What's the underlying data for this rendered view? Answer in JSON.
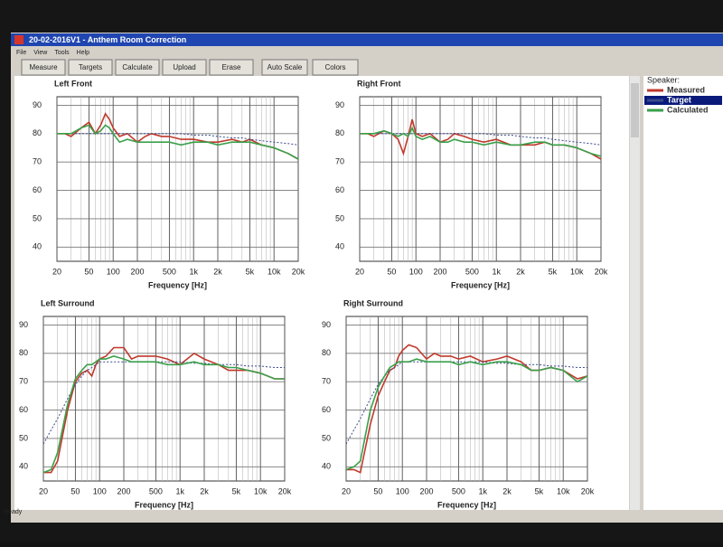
{
  "window": {
    "title": "20-02-2016V1 - Anthem Room Correction",
    "menu": [
      "File",
      "View",
      "Tools",
      "Help"
    ],
    "toolbar": [
      "Measure",
      "Targets",
      "Calculate",
      "Upload",
      "Erase",
      "Auto Scale",
      "Colors"
    ],
    "legend": {
      "title": "Speaker:",
      "items": [
        {
          "name": "Measured",
          "color": "#c0392b"
        },
        {
          "name": "Target",
          "color": "#3a4a8a",
          "selected": true
        },
        {
          "name": "Calculated",
          "color": "#3aa04a"
        }
      ]
    },
    "status": "Ready"
  },
  "chart_data": [
    {
      "type": "line",
      "title": "Left Front",
      "x_label": "Frequency [Hz]",
      "log_x": true,
      "grid": true,
      "x": [
        20,
        25,
        30,
        40,
        50,
        60,
        70,
        80,
        90,
        100,
        120,
        150,
        200,
        250,
        300,
        400,
        500,
        700,
        1000,
        1500,
        2000,
        3000,
        4000,
        5000,
        7000,
        10000,
        15000,
        20000
      ],
      "xlim": [
        20,
        20000
      ],
      "xticks": [
        20,
        50,
        100,
        200,
        500,
        {
          "value": 1000,
          "label": "1k"
        },
        {
          "value": 2000,
          "label": "2k"
        },
        {
          "value": 5000,
          "label": "5k"
        },
        {
          "value": 10000,
          "label": "10k"
        },
        {
          "value": 20000,
          "label": "20k"
        }
      ],
      "ylim": [
        35,
        93
      ],
      "yticks": [
        40,
        50,
        60,
        70,
        80,
        90
      ],
      "series": [
        {
          "color": "#c0392b",
          "values": [
            80,
            80,
            79,
            82,
            84,
            80,
            83,
            87,
            85,
            82,
            79,
            80,
            77,
            79,
            80,
            79,
            79,
            78,
            78,
            77,
            77,
            78,
            77,
            78,
            76,
            75,
            73,
            71
          ]
        },
        {
          "color": "#3a4a8a",
          "style": "dotted",
          "values": [
            80,
            80,
            80,
            80,
            80,
            80,
            80,
            80,
            80,
            80,
            80,
            80,
            80,
            80,
            80,
            80,
            80,
            80,
            79.5,
            79.5,
            79,
            78.5,
            78.5,
            78,
            77.5,
            77,
            76.5,
            76
          ]
        },
        {
          "color": "#3aa04a",
          "values": [
            80,
            80,
            80,
            82,
            83,
            80,
            81,
            83,
            82,
            80,
            77,
            78,
            77,
            77,
            77,
            77,
            77,
            76,
            77,
            77,
            76,
            77,
            77,
            77,
            76,
            75,
            73,
            71
          ]
        }
      ]
    },
    {
      "type": "line",
      "title": "Right Front",
      "x_label": "Frequency [Hz]",
      "log_x": true,
      "grid": true,
      "x": [
        20,
        25,
        30,
        40,
        50,
        60,
        70,
        80,
        90,
        100,
        120,
        150,
        200,
        250,
        300,
        400,
        500,
        700,
        1000,
        1500,
        2000,
        3000,
        4000,
        5000,
        7000,
        10000,
        15000,
        20000
      ],
      "xlim": [
        20,
        20000
      ],
      "xticks": [
        20,
        50,
        100,
        200,
        500,
        {
          "value": 1000,
          "label": "1k"
        },
        {
          "value": 2000,
          "label": "2k"
        },
        {
          "value": 5000,
          "label": "5k"
        },
        {
          "value": 10000,
          "label": "10k"
        },
        {
          "value": 20000,
          "label": "20k"
        }
      ],
      "ylim": [
        35,
        93
      ],
      "yticks": [
        40,
        50,
        60,
        70,
        80,
        90
      ],
      "series": [
        {
          "color": "#c0392b",
          "values": [
            80,
            80,
            79,
            81,
            80,
            78,
            73,
            79,
            85,
            80,
            79,
            80,
            77,
            78,
            80,
            79,
            78,
            77,
            78,
            76,
            76,
            76,
            77,
            76,
            76,
            75,
            73,
            71
          ]
        },
        {
          "color": "#3a4a8a",
          "style": "dotted",
          "values": [
            80,
            80,
            80,
            80,
            80,
            80,
            80,
            80,
            80,
            80,
            80,
            80,
            80,
            80,
            80,
            80,
            80,
            80,
            79.5,
            79.5,
            79,
            78.5,
            78.5,
            78,
            77.5,
            77,
            76.5,
            76
          ]
        },
        {
          "color": "#3aa04a",
          "values": [
            80,
            80,
            80,
            81,
            80,
            79,
            80,
            79,
            82,
            79,
            78,
            79,
            77,
            77,
            78,
            77,
            77,
            76,
            77,
            76,
            76,
            77,
            77,
            76,
            76,
            75,
            73,
            72
          ]
        }
      ]
    },
    {
      "type": "line",
      "title": "Left Surround",
      "x_label": "Frequency [Hz]",
      "log_x": true,
      "grid": true,
      "x": [
        20,
        25,
        30,
        40,
        50,
        60,
        70,
        80,
        90,
        100,
        120,
        150,
        200,
        250,
        300,
        400,
        500,
        700,
        1000,
        1500,
        2000,
        3000,
        4000,
        5000,
        7000,
        10000,
        15000,
        20000
      ],
      "xlim": [
        20,
        20000
      ],
      "xticks": [
        20,
        50,
        100,
        200,
        500,
        {
          "value": 1000,
          "label": "1k"
        },
        {
          "value": 2000,
          "label": "2k"
        },
        {
          "value": 5000,
          "label": "5k"
        },
        {
          "value": 10000,
          "label": "10k"
        },
        {
          "value": 20000,
          "label": "20k"
        }
      ],
      "ylim": [
        35,
        93
      ],
      "yticks": [
        40,
        50,
        60,
        70,
        80,
        90
      ],
      "series": [
        {
          "color": "#c0392b",
          "values": [
            38,
            38,
            42,
            60,
            70,
            73,
            74,
            72,
            76,
            78,
            79,
            82,
            82,
            78,
            79,
            79,
            79,
            78,
            76,
            80,
            78,
            76,
            74,
            74,
            74,
            73,
            71,
            71
          ]
        },
        {
          "color": "#3a4a8a",
          "style": "dotted",
          "values": [
            48,
            53,
            57,
            64,
            69,
            72,
            74,
            75,
            76,
            77,
            77,
            77,
            77,
            77,
            77,
            77,
            77,
            77,
            77,
            76.5,
            76.5,
            76,
            76,
            76,
            75.5,
            75.5,
            75,
            75
          ]
        },
        {
          "color": "#3aa04a",
          "values": [
            38,
            39,
            45,
            62,
            71,
            74,
            76,
            76,
            77,
            78,
            78,
            79,
            78,
            77,
            77,
            77,
            77,
            76,
            76,
            77,
            76,
            76,
            75,
            75,
            74,
            73,
            71,
            71
          ]
        }
      ]
    },
    {
      "type": "line",
      "title": "Right Surround",
      "x_label": "Frequency [Hz]",
      "log_x": true,
      "grid": true,
      "x": [
        20,
        25,
        30,
        40,
        50,
        60,
        70,
        80,
        90,
        100,
        120,
        150,
        200,
        250,
        300,
        400,
        500,
        700,
        1000,
        1500,
        2000,
        3000,
        4000,
        5000,
        7000,
        10000,
        15000,
        20000
      ],
      "xlim": [
        20,
        20000
      ],
      "xticks": [
        20,
        50,
        100,
        200,
        500,
        {
          "value": 1000,
          "label": "1k"
        },
        {
          "value": 2000,
          "label": "2k"
        },
        {
          "value": 5000,
          "label": "5k"
        },
        {
          "value": 10000,
          "label": "10k"
        },
        {
          "value": 20000,
          "label": "20k"
        }
      ],
      "ylim": [
        35,
        93
      ],
      "yticks": [
        40,
        50,
        60,
        70,
        80,
        90
      ],
      "series": [
        {
          "color": "#c0392b",
          "values": [
            39,
            39,
            38,
            55,
            65,
            70,
            74,
            75,
            79,
            81,
            83,
            82,
            78,
            80,
            79,
            79,
            78,
            79,
            77,
            78,
            79,
            77,
            74,
            74,
            75,
            74,
            71,
            72
          ]
        },
        {
          "color": "#3a4a8a",
          "style": "dotted",
          "values": [
            48,
            53,
            57,
            64,
            69,
            72,
            74,
            75,
            76,
            77,
            77,
            77,
            77,
            77,
            77,
            77,
            77,
            77,
            77,
            76.5,
            76.5,
            76,
            76,
            76,
            75.5,
            75.5,
            75,
            75
          ]
        },
        {
          "color": "#3aa04a",
          "values": [
            39,
            40,
            42,
            60,
            68,
            72,
            75,
            76,
            77,
            77,
            77,
            78,
            77,
            77,
            77,
            77,
            76,
            77,
            76,
            77,
            77,
            76,
            74,
            74,
            75,
            74,
            70,
            72
          ]
        }
      ]
    }
  ]
}
